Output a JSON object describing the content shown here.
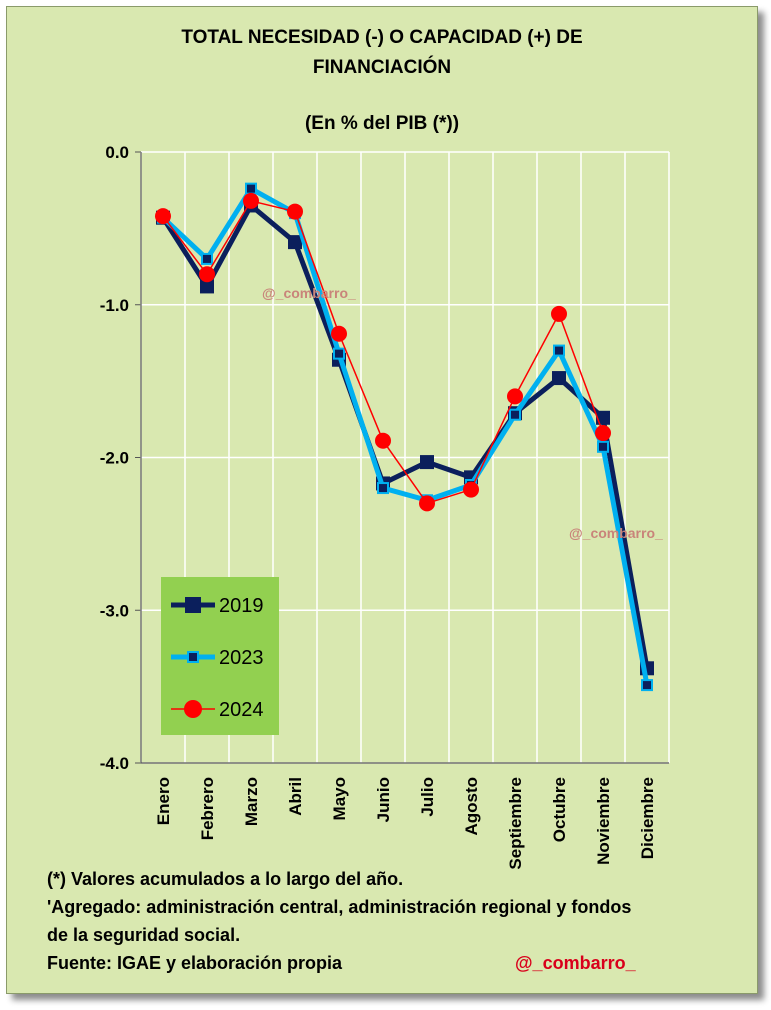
{
  "title_line1": "TOTAL NECESIDAD (-) O CAPACIDAD (+) DE",
  "title_line2": "FINANCIACIÓN",
  "subtitle": "(En % del PIB (*))",
  "watermark": "@_combarro_",
  "notes": {
    "line1": "(*) Valores acumulados a lo largo del año.",
    "line2": "'Agregado: administración central, administración regional y fondos",
    "line3": "de la seguridad social.",
    "line4": "Fuente: IGAE y elaboración propia"
  },
  "handle": "@_combarro_",
  "colors": {
    "background": "#d9e8b0",
    "legend_bg": "#92d050",
    "s2019": "#0b1f5c",
    "s2023": "#00b0f0",
    "s2024": "#ff0000"
  },
  "chart_data": {
    "type": "line",
    "title": "TOTAL NECESIDAD (-) O CAPACIDAD (+) DE FINANCIACIÓN",
    "subtitle": "(En % del PIB (*))",
    "categories": [
      "Enero",
      "Febrero",
      "Marzo",
      "Abril",
      "Mayo",
      "Junio",
      "Julio",
      "Agosto",
      "Septiembre",
      "Octubre",
      "Noviembre",
      "Diciembre"
    ],
    "yticks": [
      "0.0",
      "-1.0",
      "-2.0",
      "-3.0",
      "-4.0"
    ],
    "ylim": [
      -4.0,
      0.0
    ],
    "grid": true,
    "legend_position": "lower-left inside",
    "series": [
      {
        "name": "2019",
        "values": [
          -0.43,
          -0.88,
          -0.35,
          -0.59,
          -1.36,
          -2.17,
          -2.03,
          -2.13,
          -1.71,
          -1.48,
          -1.74,
          -3.38
        ]
      },
      {
        "name": "2023",
        "values": [
          -0.43,
          -0.7,
          -0.24,
          -0.4,
          -1.32,
          -2.2,
          -2.28,
          -2.18,
          -1.72,
          -1.3,
          -1.93,
          -3.49
        ]
      },
      {
        "name": "2024",
        "values": [
          -0.42,
          -0.8,
          -0.32,
          -0.39,
          -1.19,
          -1.89,
          -2.3,
          -2.21,
          -1.6,
          -1.06,
          -1.84,
          null
        ]
      }
    ]
  }
}
